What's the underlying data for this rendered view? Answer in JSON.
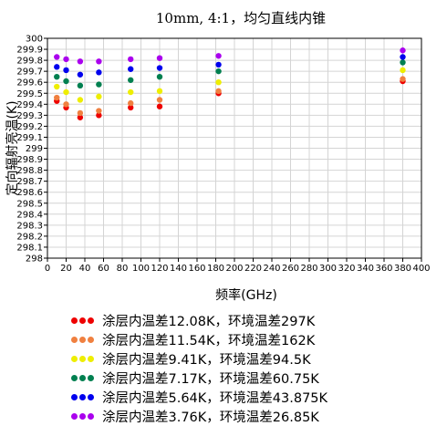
{
  "chart_data": {
    "type": "scatter",
    "title": "10mm, 4:1，均匀直线内锥",
    "xlabel": "频率(GHz)",
    "ylabel": "定向辐射亮温(K)",
    "xlim": [
      0,
      400
    ],
    "ylim": [
      298,
      300
    ],
    "x_ticks": [
      "0",
      "20",
      "40",
      "60",
      "80",
      "100",
      "120",
      "140",
      "160",
      "180",
      "200",
      "220",
      "240",
      "260",
      "280",
      "300",
      "320",
      "340",
      "360",
      "380",
      "400"
    ],
    "y_ticks": [
      "298",
      "298.1",
      "298.2",
      "298.3",
      "298.4",
      "298.5",
      "298.6",
      "298.7",
      "298.8",
      "298.9",
      "299",
      "299.1",
      "299.2",
      "299.3",
      "299.4",
      "299.5",
      "299.6",
      "299.7",
      "299.8",
      "299.9",
      "300"
    ],
    "y_tick_label_overrides": {
      "299.0": "299"
    },
    "grid": true,
    "legend_position": "bottom",
    "x": [
      10,
      20,
      35,
      55,
      89,
      120,
      183,
      380
    ],
    "series": [
      {
        "name": "涂层内温差12.08K，环境温差297K",
        "color": "#ee0000",
        "values": [
          299.43,
          299.37,
          299.28,
          299.3,
          299.37,
          299.38,
          299.5,
          299.61
        ]
      },
      {
        "name": "涂层内温差11.54K，环境温差162K",
        "color": "#f08040",
        "values": [
          299.46,
          299.4,
          299.32,
          299.34,
          299.41,
          299.44,
          299.52,
          299.63
        ]
      },
      {
        "name": "涂层内温差9.41K，环境温差94.5K",
        "color": "#eeee00",
        "values": [
          299.56,
          299.51,
          299.44,
          299.47,
          299.51,
          299.52,
          299.6,
          299.71
        ]
      },
      {
        "name": "涂层内温差7.17K，环境温差60.75K",
        "color": "#008050",
        "values": [
          299.65,
          299.61,
          299.57,
          299.58,
          299.62,
          299.65,
          299.7,
          299.78
        ]
      },
      {
        "name": "涂层内温差5.64K，环境温差43.875K",
        "color": "#0000ee",
        "values": [
          299.74,
          299.71,
          299.67,
          299.69,
          299.72,
          299.73,
          299.76,
          299.83
        ]
      },
      {
        "name": "涂层内温差3.76K，环境温差26.85K",
        "color": "#aa00ee",
        "values": [
          299.83,
          299.81,
          299.79,
          299.79,
          299.81,
          299.82,
          299.84,
          299.89
        ]
      }
    ]
  }
}
